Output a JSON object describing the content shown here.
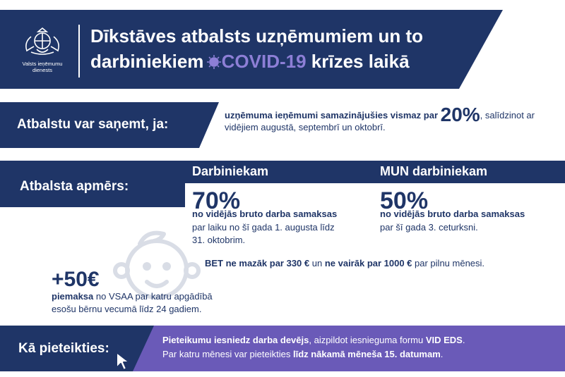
{
  "logo": {
    "line1": "Valsts ieņēmumu",
    "line2": "dienests"
  },
  "header": {
    "title_line1": "Dīkstāves atbalsts uzņēmumiem un to",
    "title_line2_a": "darbiniekiem ",
    "title_line2_covid": "COVID-19",
    "title_line2_b": " krīzes laikā"
  },
  "condition": {
    "label": "Atbalstu var saņemt, ja:",
    "bold_text": "uzņēmuma ieņēmumi samazinājušies vismaz par ",
    "percent": "20%",
    "rest": ", salīdzinot ar vidējiem augustā, septembrī un oktobrī."
  },
  "amount": {
    "label": "Atbalsta apmērs:",
    "col1": {
      "head": "Darbiniekam",
      "percent": "70%",
      "desc": "no vidējās bruto darba samaksas",
      "period": "par laiku no šī gada 1. augusta līdz 31. oktobrim."
    },
    "col2": {
      "head": "MUN darbiniekam",
      "percent": "50%",
      "desc": "no vidējās bruto darba samaksas",
      "period": "par šī gada 3. ceturksni."
    },
    "bet": {
      "b1": "BET",
      "b2": " ne mazāk par 330 €",
      "t1": " un ",
      "b3": "ne vairāk par 1000 €",
      "t2": " par pilnu mēnesi."
    }
  },
  "supplement": {
    "amount": "+50€",
    "bold": "piemaksa",
    "text": " no VSAA par katru apgādībā esošu bērnu vecumā līdz 24 gadiem."
  },
  "apply": {
    "label": "Kā pieteikties:",
    "l1_bold": "Pieteikumu iesniedz darba devējs",
    "l1_text": ", aizpildot iesnieguma formu ",
    "l1_bold2": "VID EDS",
    "l1_end": ".",
    "l2_text": "Par katru mēnesi var pieteikties ",
    "l2_bold": "līdz nākamā mēneša 15. datumam",
    "l2_end": "."
  },
  "colors": {
    "navy": "#1f3567",
    "purple": "#6a5ab8",
    "covid_accent": "#8d7fd6",
    "child_icon": "#d9dde6"
  }
}
